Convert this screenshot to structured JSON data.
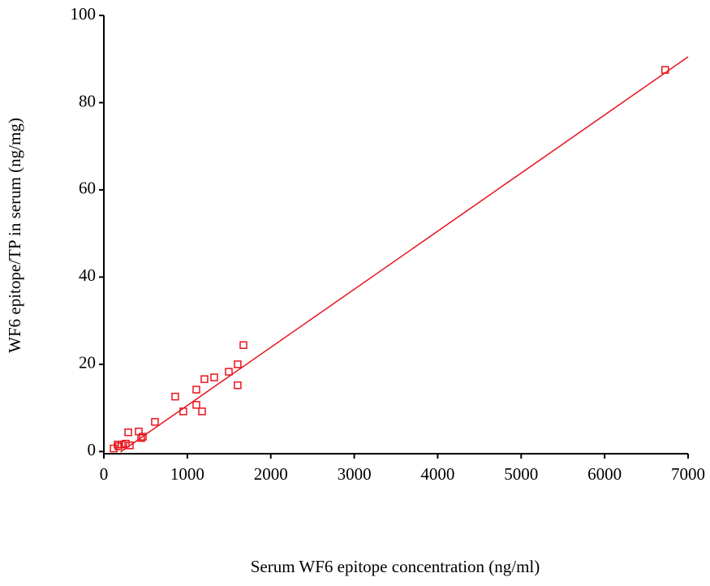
{
  "chart_data": {
    "type": "scatter",
    "xlabel": "Serum WF6 epitope concentration (ng/ml)",
    "ylabel": "WF6 epitope/TP in serum (ng/mg)",
    "x": [
      6725,
      1672,
      1603,
      1497,
      1322,
      1205,
      1108,
      1603,
      855,
      1108,
      952,
      1176,
      612,
      292,
      418,
      467,
      447,
      165,
      214,
      311,
      175,
      262,
      117
    ],
    "y": [
      87.5,
      24.4,
      20.0,
      18.3,
      17.0,
      16.6,
      14.2,
      15.2,
      12.6,
      10.7,
      9.2,
      9.2,
      6.8,
      4.4,
      4.6,
      3.4,
      3.1,
      1.6,
      1.6,
      1.4,
      1.2,
      1.8,
      0.7
    ],
    "color": "#e8141b",
    "fit_line": {
      "x": [
        200,
        7000
      ],
      "y": [
        -0.1,
        90.5
      ],
      "color": "#e8141b"
    },
    "xlim": [
      0,
      7000
    ],
    "xticks": [
      0,
      1000,
      2000,
      3000,
      4000,
      5000,
      6000,
      7000
    ],
    "ylim": [
      -0.5,
      100
    ],
    "yticks": [
      0,
      20,
      40,
      60,
      80,
      100
    ]
  }
}
